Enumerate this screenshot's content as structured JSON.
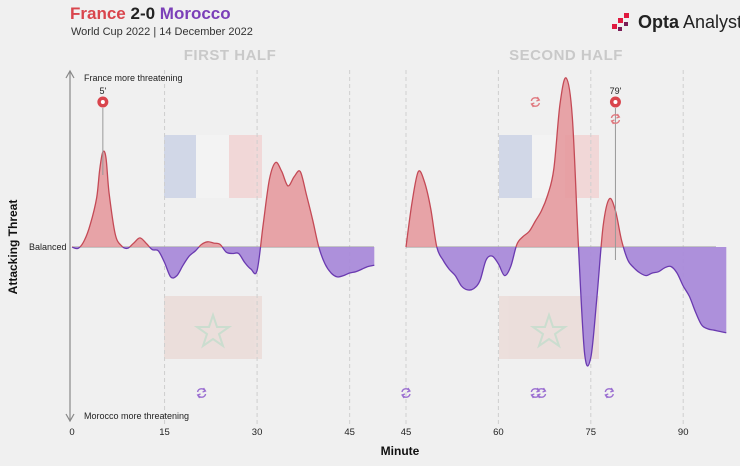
{
  "header": {
    "home_team": "France",
    "score": "2-0",
    "away_team": "Morocco",
    "subtitle": "World Cup 2022 | 14 December 2022",
    "brand_bold": "Opta",
    "brand_light": " Analyst",
    "home_color": "#d9454d",
    "away_color": "#7b3fb8"
  },
  "chart_data": {
    "type": "area",
    "title": "France 2-0 Morocco",
    "xlabel": "Minute",
    "ylabel": "Attacking Threat",
    "y_top_label": "France more threatening",
    "y_mid_label": "Balanced",
    "y_bottom_label": "Morocco more threatening",
    "panels": [
      {
        "label": "FIRST HALF",
        "xlim": [
          0,
          49
        ],
        "ticks": [
          0,
          15,
          30,
          45
        ]
      },
      {
        "label": "SECOND HALF",
        "xlim": [
          45,
          97
        ],
        "ticks": [
          45,
          60,
          75,
          90
        ]
      }
    ],
    "ylim": [
      -1,
      1
    ],
    "grid": true,
    "series": [
      {
        "panel": 0,
        "x": [
          0,
          1,
          2,
          3,
          4,
          4.5,
          5,
          5.5,
          6,
          7,
          8,
          9,
          10,
          11,
          12,
          13,
          14,
          15,
          16,
          17,
          18,
          19,
          20,
          21,
          22,
          23,
          24,
          25,
          26,
          27,
          28,
          29,
          30,
          31,
          32,
          33,
          34,
          35,
          36,
          37,
          38,
          39,
          40,
          41,
          42,
          43,
          44,
          45,
          46,
          47,
          48,
          49
        ],
        "values": [
          0,
          -0.01,
          0.05,
          0.18,
          0.38,
          0.6,
          0.73,
          0.69,
          0.42,
          0.1,
          0.01,
          -0.01,
          0.03,
          0.07,
          0.03,
          -0.02,
          -0.03,
          -0.12,
          -0.23,
          -0.22,
          -0.14,
          -0.07,
          -0.03,
          0.02,
          0.04,
          0.03,
          0.02,
          -0.04,
          -0.05,
          -0.05,
          -0.12,
          -0.17,
          -0.18,
          0.18,
          0.52,
          0.65,
          0.58,
          0.47,
          0.54,
          0.58,
          0.4,
          0.21,
          0.0,
          -0.13,
          -0.2,
          -0.23,
          -0.22,
          -0.2,
          -0.19,
          -0.17,
          -0.15,
          -0.14
        ]
      },
      {
        "panel": 1,
        "x": [
          45,
          46,
          47,
          48,
          49,
          50,
          51,
          52,
          53,
          54,
          55,
          56,
          57,
          58,
          59,
          60,
          61,
          62,
          63,
          64,
          65,
          66,
          67,
          68,
          69,
          70,
          71,
          72,
          73,
          74,
          75,
          76,
          77,
          78,
          79,
          80,
          81,
          82,
          83,
          84,
          85,
          86,
          87,
          88,
          89,
          90,
          91,
          92,
          93,
          94,
          95,
          96,
          97
        ],
        "values": [
          0,
          0.35,
          0.58,
          0.5,
          0.3,
          0.0,
          -0.1,
          -0.17,
          -0.22,
          -0.3,
          -0.33,
          -0.32,
          -0.26,
          -0.1,
          -0.07,
          -0.13,
          -0.22,
          -0.15,
          0.02,
          0.08,
          0.12,
          0.2,
          0.28,
          0.4,
          0.6,
          1.1,
          1.3,
          1.0,
          0.0,
          -0.82,
          -0.85,
          -0.38,
          0.16,
          0.37,
          0.28,
          0.05,
          -0.1,
          -0.16,
          -0.2,
          -0.22,
          -0.2,
          -0.19,
          -0.16,
          -0.15,
          -0.2,
          -0.3,
          -0.38,
          -0.5,
          -0.6,
          -0.63,
          -0.64,
          -0.65,
          -0.66
        ]
      }
    ],
    "events": [
      {
        "minute": 5,
        "team": "France",
        "type": "goal",
        "label": "5'"
      },
      {
        "minute": 79,
        "team": "France",
        "type": "goal",
        "label": "79'"
      },
      {
        "minute": 66,
        "team": "France",
        "type": "substitution"
      },
      {
        "minute": 79,
        "team": "France",
        "type": "substitution"
      },
      {
        "minute": 21,
        "team": "Morocco",
        "type": "substitution"
      },
      {
        "minute": 45,
        "team": "Morocco",
        "type": "substitution"
      },
      {
        "minute": 66,
        "team": "Morocco",
        "type": "substitution"
      },
      {
        "minute": 67,
        "team": "Morocco",
        "type": "substitution"
      },
      {
        "minute": 78,
        "team": "Morocco",
        "type": "substitution"
      }
    ],
    "colors": {
      "france_fill": "#e59a9e",
      "france_line": "#c44a56",
      "morocco_fill": "#a98ad9",
      "morocco_line": "#6a3ab0",
      "goal": "#d9454d",
      "sub_france": "#e07a80",
      "sub_morocco": "#9b6fd1"
    }
  }
}
